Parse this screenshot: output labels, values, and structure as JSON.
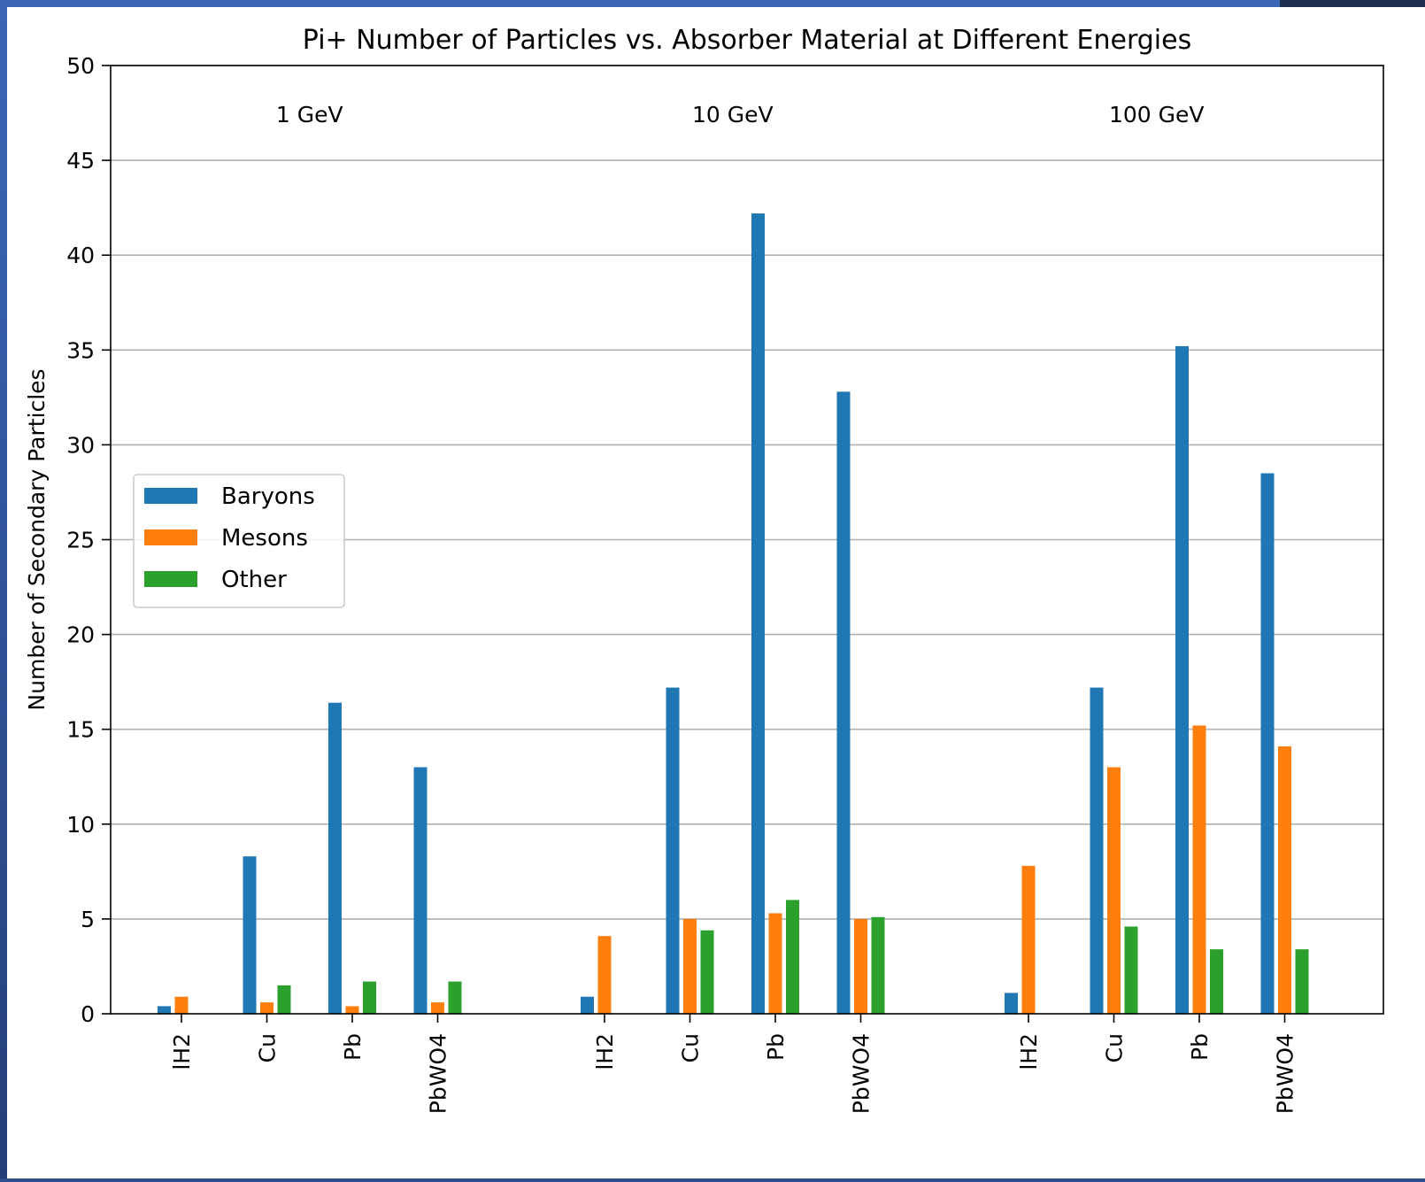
{
  "chart_data": {
    "type": "bar",
    "title": "Pi+ Number of Particles vs. Absorber Material at Different Energies",
    "xlabel": "",
    "ylabel": "Number of Secondary Particles",
    "ylim": [
      0,
      50
    ],
    "yticks": [
      0,
      5,
      10,
      15,
      20,
      25,
      30,
      35,
      40,
      45,
      50
    ],
    "grid": "horizontal",
    "legend_position": "center-left",
    "groups": [
      {
        "label": "1 GeV",
        "materials": [
          "lH2",
          "Cu",
          "Pb",
          "PbWO4"
        ],
        "series": [
          {
            "name": "Baryons",
            "values": [
              0.4,
              8.3,
              16.4,
              13.0
            ]
          },
          {
            "name": "Mesons",
            "values": [
              0.9,
              0.6,
              0.4,
              0.6
            ]
          },
          {
            "name": "Other",
            "values": [
              0.0,
              1.5,
              1.7,
              1.7
            ]
          }
        ]
      },
      {
        "label": "10 GeV",
        "materials": [
          "lH2",
          "Cu",
          "Pb",
          "PbWO4"
        ],
        "series": [
          {
            "name": "Baryons",
            "values": [
              0.9,
              17.2,
              42.2,
              32.8
            ]
          },
          {
            "name": "Mesons",
            "values": [
              4.1,
              5.0,
              5.3,
              5.0
            ]
          },
          {
            "name": "Other",
            "values": [
              0.0,
              4.4,
              6.0,
              5.1
            ]
          }
        ]
      },
      {
        "label": "100 GeV",
        "materials": [
          "lH2",
          "Cu",
          "Pb",
          "PbWO4"
        ],
        "series": [
          {
            "name": "Baryons",
            "values": [
              1.1,
              17.2,
              35.2,
              28.5
            ]
          },
          {
            "name": "Mesons",
            "values": [
              7.8,
              13.0,
              15.2,
              14.1
            ]
          },
          {
            "name": "Other",
            "values": [
              0.0,
              4.6,
              3.4,
              3.4
            ]
          }
        ]
      }
    ],
    "legend": [
      {
        "name": "Baryons",
        "color": "#1f77b4"
      },
      {
        "name": "Mesons",
        "color": "#ff7f0e"
      },
      {
        "name": "Other",
        "color": "#2ca02c"
      }
    ]
  }
}
